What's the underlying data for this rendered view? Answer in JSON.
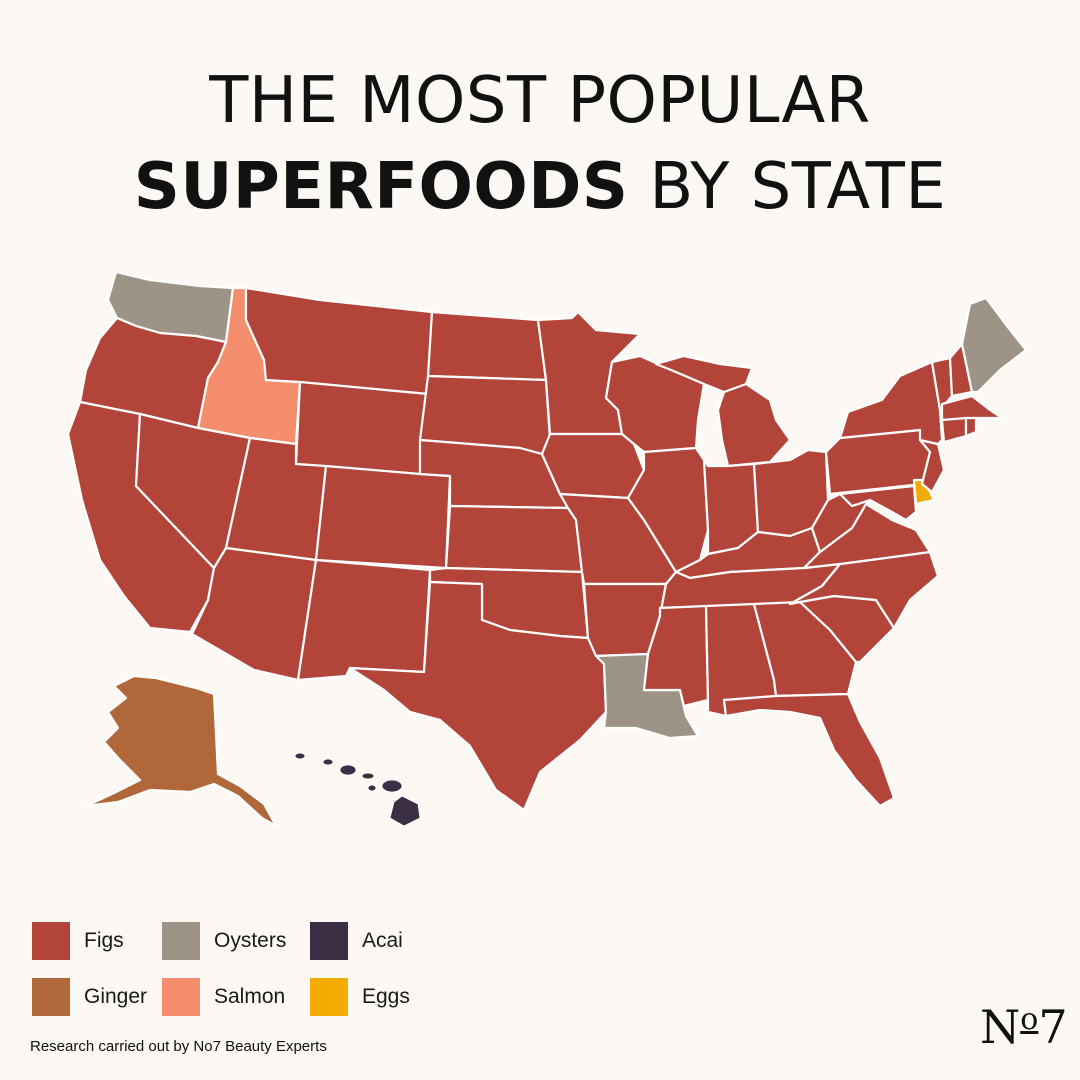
{
  "title": {
    "line1": "THE MOST POPULAR",
    "line2_bold": "SUPERFOODS",
    "line2_rest": " BY STATE"
  },
  "colors": {
    "figs": "#b3443a",
    "oysters": "#9e9387",
    "acai": "#3c2e45",
    "ginger": "#b0673a",
    "salmon": "#f58e6c",
    "eggs": "#f4ac05"
  },
  "map": {
    "states": [
      {
        "name": "Washington",
        "food": "oysters"
      },
      {
        "name": "Idaho",
        "food": "salmon"
      },
      {
        "name": "Maine",
        "food": "oysters"
      },
      {
        "name": "Louisiana",
        "food": "oysters"
      },
      {
        "name": "Delaware",
        "food": "eggs"
      },
      {
        "name": "Alaska",
        "food": "ginger"
      },
      {
        "name": "Hawaii",
        "food": "acai"
      },
      {
        "name": "All other states",
        "food": "figs"
      }
    ]
  },
  "legend": [
    {
      "label": "Figs",
      "food": "figs"
    },
    {
      "label": "Oysters",
      "food": "oysters"
    },
    {
      "label": "Acai",
      "food": "acai"
    },
    {
      "label": "Ginger",
      "food": "ginger"
    },
    {
      "label": "Salmon",
      "food": "salmon"
    },
    {
      "label": "Eggs",
      "food": "eggs"
    }
  ],
  "footnote": "Research carried out by No7 Beauty Experts",
  "logo": {
    "main": "N",
    "super": "o",
    "digit": "7"
  }
}
